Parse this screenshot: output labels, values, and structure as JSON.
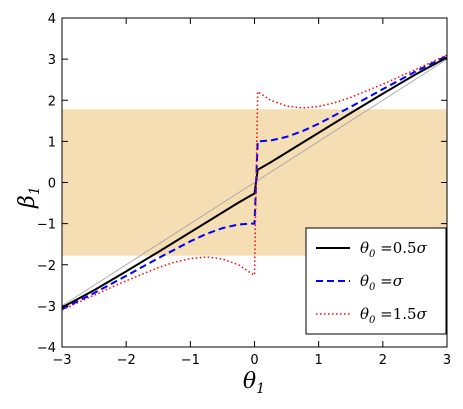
{
  "chart_data": {
    "type": "line",
    "xlabel": "θ",
    "xlabel_sub": "1",
    "ylabel": "β",
    "ylabel_sub": "1",
    "xlim": [
      -3,
      3
    ],
    "ylim": [
      -4,
      4
    ],
    "xticks": [
      -3,
      -2,
      -1,
      0,
      1,
      2,
      3
    ],
    "yticks": [
      -4,
      -3,
      -2,
      -1,
      0,
      1,
      2,
      3,
      4
    ],
    "xtick_labels": [
      "−3",
      "−2",
      "−1",
      "0",
      "1",
      "2",
      "3"
    ],
    "ytick_labels": [
      "−4",
      "−3",
      "−2",
      "−1",
      "0",
      "1",
      "2",
      "3",
      "4"
    ],
    "shaded_band": {
      "y_range": [
        -1.78,
        1.78
      ],
      "color": "#f5deb3"
    },
    "reference_line": {
      "slope": 1,
      "color": "#aaaaaa"
    },
    "grid": false,
    "legend_position": "lower-right",
    "series": [
      {
        "legend": "θ₀ = 0.5σ",
        "color": "#000000",
        "style": "solid",
        "theta0": 0.5,
        "x": [
          -3.0,
          -2.5,
          -2.0,
          -1.5,
          -1.0,
          -0.75,
          -0.5,
          -0.25,
          -0.05,
          0.0,
          0.05,
          0.25,
          0.5,
          0.75,
          1.0,
          1.5,
          2.0,
          2.5,
          3.0
        ],
        "y": [
          -3.04,
          -2.62,
          -2.16,
          -1.69,
          -1.21,
          -0.97,
          -0.73,
          -0.49,
          -0.31,
          -0.27,
          0.31,
          0.49,
          0.73,
          0.97,
          1.21,
          1.69,
          2.16,
          2.62,
          3.04
        ]
      },
      {
        "legend": "θ₀ = σ",
        "color": "#0000ff",
        "style": "dashed",
        "theta0": 1.0,
        "x": [
          -3.0,
          -2.5,
          -2.0,
          -1.5,
          -1.0,
          -0.75,
          -0.5,
          -0.25,
          -0.05,
          0.0,
          0.05,
          0.25,
          0.5,
          0.75,
          1.0,
          1.5,
          2.0,
          2.5,
          3.0
        ],
        "y": [
          -3.08,
          -2.69,
          -2.27,
          -1.84,
          -1.43,
          -1.25,
          -1.11,
          -1.02,
          -1.0,
          -1.0,
          1.0,
          1.02,
          1.11,
          1.25,
          1.43,
          1.84,
          2.27,
          2.69,
          3.08
        ]
      },
      {
        "legend": "θ₀ = 1.5σ",
        "color": "#ff0000",
        "style": "dotted",
        "theta0": 1.5,
        "x": [
          -3.0,
          -2.5,
          -2.0,
          -1.5,
          -1.25,
          -1.0,
          -0.75,
          -0.5,
          -0.25,
          -0.05,
          0.0,
          0.05,
          0.25,
          0.5,
          0.75,
          1.0,
          1.25,
          1.5,
          2.0,
          2.5,
          3.0
        ],
        "y": [
          -3.1,
          -2.74,
          -2.39,
          -2.07,
          -1.94,
          -1.85,
          -1.81,
          -1.86,
          -2.0,
          -2.21,
          -2.25,
          2.21,
          2.0,
          1.86,
          1.81,
          1.85,
          1.94,
          2.07,
          2.39,
          2.74,
          3.1
        ]
      }
    ]
  }
}
